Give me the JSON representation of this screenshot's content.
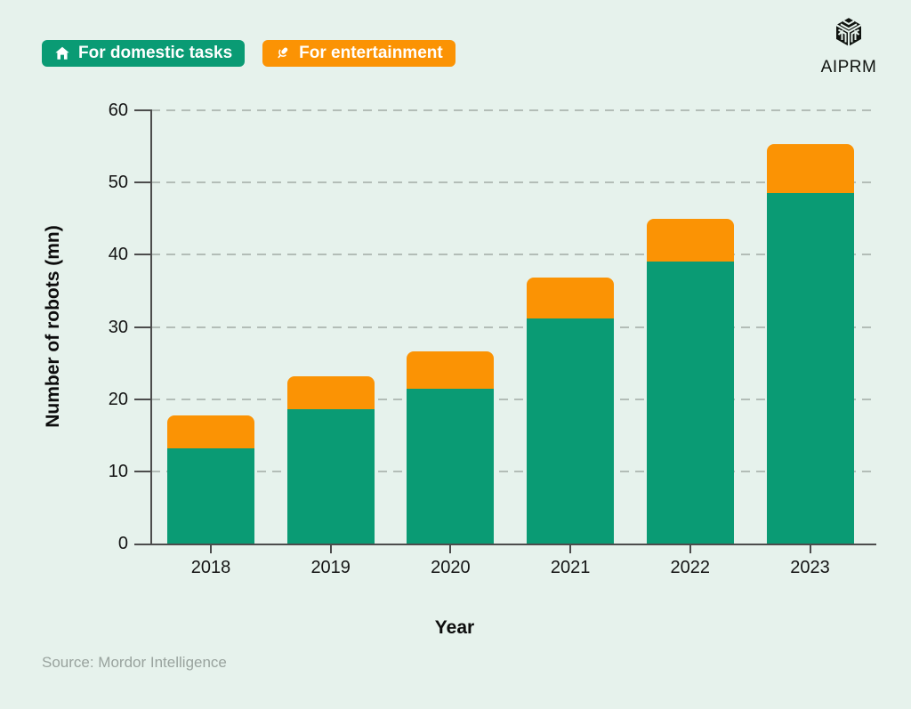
{
  "legend": {
    "items": [
      {
        "label": "For domestic tasks",
        "color": "#0a9b74",
        "icon": "house-icon"
      },
      {
        "label": "For entertainment",
        "color": "#fb9304",
        "icon": "microphone-icon"
      }
    ]
  },
  "brand": {
    "name": "AIPRM"
  },
  "chart_data": {
    "type": "bar",
    "stacked": true,
    "categories": [
      "2018",
      "2019",
      "2020",
      "2021",
      "2022",
      "2023"
    ],
    "series": [
      {
        "name": "For domestic tasks",
        "color": "#0a9b74",
        "values": [
          13.2,
          18.6,
          21.5,
          31.2,
          39.0,
          48.6
        ]
      },
      {
        "name": "For entertainment",
        "color": "#fb9304",
        "values": [
          4.5,
          4.6,
          5.1,
          5.6,
          6.0,
          6.7
        ]
      }
    ],
    "title": "",
    "xlabel": "Year",
    "ylabel": "Number of robots (mn)",
    "ylim": [
      0,
      60
    ],
    "yticks": [
      0,
      10,
      20,
      30,
      40,
      50,
      60
    ],
    "grid": "horizontal-dashed",
    "legend_position": "top-left"
  },
  "source": "Source: Mordor Intelligence",
  "colors": {
    "background": "#e6f2ec",
    "axis": "#4c4c4c",
    "gridline": "#b3bdb7",
    "text": "#141414",
    "source_text": "#99a39e"
  }
}
